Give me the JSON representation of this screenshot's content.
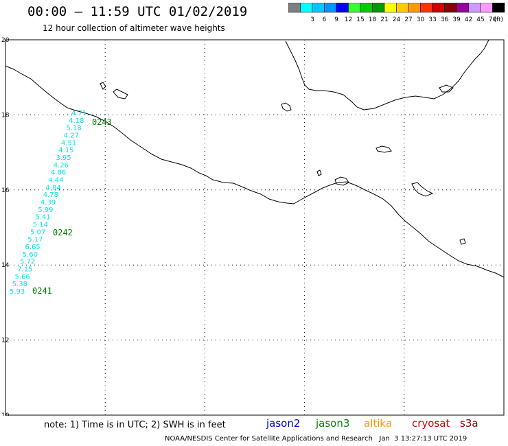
{
  "header": {
    "title": "00:00 – 11:59 UTC 01/02/2019",
    "subtitle": "12 hour collection of altimeter wave heights"
  },
  "colorbar": {
    "unit": "(ft)",
    "items": [
      {
        "label": "",
        "color": "#7f7f7f"
      },
      {
        "label": "3",
        "color": "#00ffff"
      },
      {
        "label": "6",
        "color": "#00c8ff"
      },
      {
        "label": "9",
        "color": "#0096ff"
      },
      {
        "label": "12",
        "color": "#0000ff"
      },
      {
        "label": "15",
        "color": "#33ff33"
      },
      {
        "label": "18",
        "color": "#00cc00"
      },
      {
        "label": "21",
        "color": "#009900"
      },
      {
        "label": "24",
        "color": "#ffff00"
      },
      {
        "label": "27",
        "color": "#ffcc00"
      },
      {
        "label": "30",
        "color": "#ff9900"
      },
      {
        "label": "33",
        "color": "#ff3300"
      },
      {
        "label": "36",
        "color": "#cc0000"
      },
      {
        "label": "39",
        "color": "#880000"
      },
      {
        "label": "42",
        "color": "#990099"
      },
      {
        "label": "45",
        "color": "#cc99ff"
      },
      {
        "label": "70",
        "color": "#ff99ff"
      },
      {
        "label": "",
        "color": "#000000"
      }
    ]
  },
  "map": {
    "lon_range": [
      -105,
      -90
    ],
    "lat_range": [
      10,
      20
    ],
    "x_ticks": [
      "-105",
      "-102",
      "-99",
      "-96",
      "-93",
      "-90"
    ],
    "y_ticks": [
      "20",
      "18",
      "16",
      "14",
      "12",
      "10"
    ]
  },
  "track": {
    "color": "#00e5e5",
    "label_color": "#007a00",
    "heights": [
      "4.71",
      "4.18",
      "5.18",
      "4.27",
      "4.51",
      "4.15",
      "3.95",
      "4.26",
      "4.86",
      "4.44",
      "4.84",
      "4.78",
      "4.39",
      "5.99",
      "5.41",
      "5.14",
      "5.07",
      "5.17",
      "6.65",
      "5.60",
      "5.72",
      "7.15",
      "5.66",
      "5.38",
      "5.93"
    ],
    "time_labels": [
      "0243",
      "0242",
      "0241"
    ]
  },
  "footer": {
    "note": "note: 1) Time is in UTC; 2) SWH is in feet",
    "credit": "NOAA/NESDIS Center for Satellite Applications and Research   Jan  3 13:27:13 UTC 2019"
  },
  "satellites": [
    {
      "name": "jason2",
      "color": "#0000cc"
    },
    {
      "name": "jason3",
      "color": "#008800"
    },
    {
      "name": "altika",
      "color": "#ff9900"
    },
    {
      "name": "cryosat",
      "color": "#cc0000"
    },
    {
      "name": "s3a",
      "color": "#880000"
    }
  ]
}
